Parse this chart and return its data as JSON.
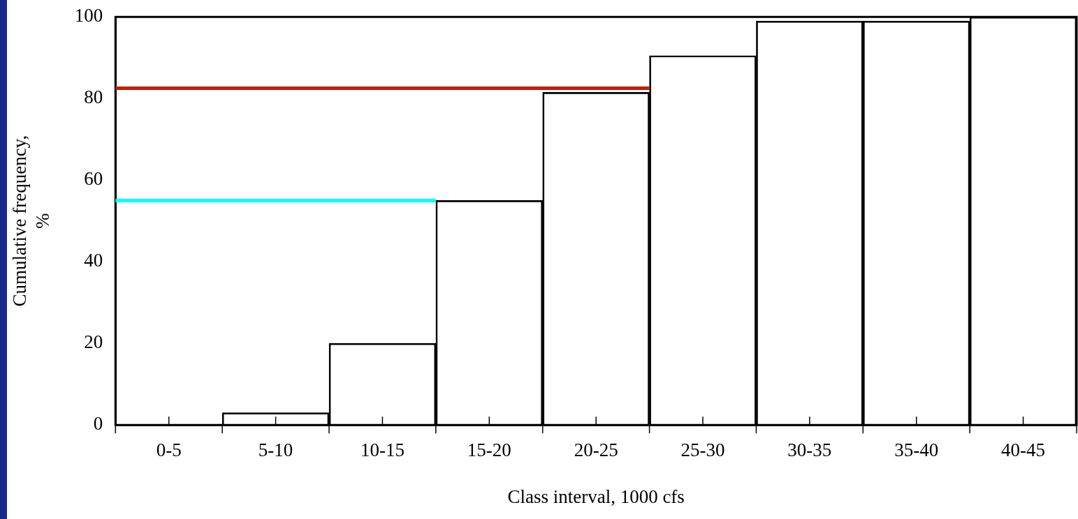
{
  "chart_data": {
    "type": "bar",
    "xlabel": "Class interval, 1000 cfs",
    "ylabel": "Cumulative frequency, %",
    "categories": [
      "0-5",
      "5-10",
      "10-15",
      "15-20",
      "20-25",
      "25-30",
      "30-35",
      "35-40",
      "40-45"
    ],
    "values": [
      0,
      3,
      20,
      55,
      81.5,
      90.5,
      99,
      99,
      100
    ],
    "color": "#000000",
    "ylim": [
      0,
      100
    ],
    "yticks": [
      0,
      20,
      40,
      60,
      80,
      100
    ],
    "grid": false,
    "legend": false,
    "ref_lines": [
      {
        "axis": "y",
        "value": 82.5,
        "color": "#c02000"
      },
      {
        "axis": "y",
        "value": 55,
        "color": "#00ffff"
      }
    ]
  }
}
